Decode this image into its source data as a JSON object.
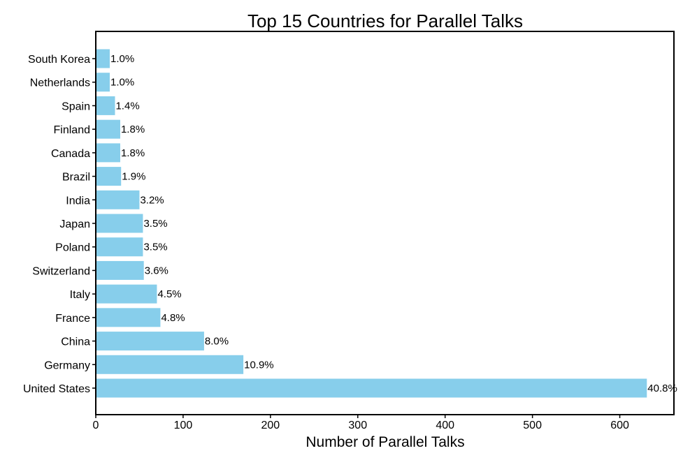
{
  "chart_data": {
    "type": "bar",
    "orientation": "horizontal",
    "title": "Top 15 Countries for Parallel Talks",
    "xlabel": "Number of Parallel Talks",
    "ylabel": "",
    "categories": [
      "South Korea",
      "Netherlands",
      "Spain",
      "Finland",
      "Canada",
      "Brazil",
      "India",
      "Japan",
      "Poland",
      "Switzerland",
      "Italy",
      "France",
      "China",
      "Germany",
      "United States"
    ],
    "values": [
      16,
      16,
      22,
      28,
      28,
      29,
      50,
      54,
      54,
      55,
      70,
      74,
      124,
      169,
      631
    ],
    "data_labels": [
      "1.0%",
      "1.0%",
      "1.4%",
      "1.8%",
      "1.8%",
      "1.9%",
      "3.2%",
      "3.5%",
      "3.5%",
      "3.6%",
      "4.5%",
      "4.8%",
      "8.0%",
      "10.9%",
      "40.8%"
    ],
    "xlim": [
      0,
      662
    ],
    "xticks": [
      "0",
      "100",
      "200",
      "300",
      "400",
      "500",
      "600"
    ],
    "grid": false,
    "bar_color": "#87ceeb"
  }
}
